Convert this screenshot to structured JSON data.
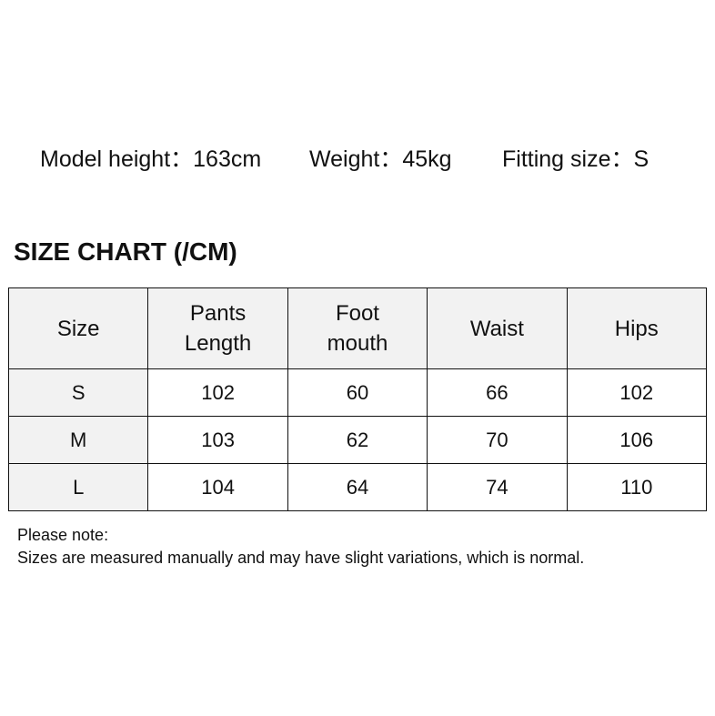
{
  "model_info": {
    "height": "Model height：163cm",
    "weight": "Weight：45kg",
    "fitting_size": "Fitting size：S"
  },
  "size_chart": {
    "title": "SIZE CHART (/CM)",
    "headers": [
      [
        "Size"
      ],
      [
        "Pants",
        "Length"
      ],
      [
        "Foot",
        "mouth"
      ],
      [
        "Waist"
      ],
      [
        "Hips"
      ]
    ],
    "rows": [
      [
        "S",
        "102",
        "60",
        "66",
        "102"
      ],
      [
        "M",
        "103",
        "62",
        "70",
        "106"
      ],
      [
        "L",
        "104",
        "64",
        "74",
        "110"
      ]
    ]
  },
  "notes": {
    "heading": "Please note:",
    "text": "Sizes are measured manually and may have slight variations, which is normal."
  },
  "colors": {
    "header_bg": "#f2f2f2",
    "border": "#111111"
  }
}
